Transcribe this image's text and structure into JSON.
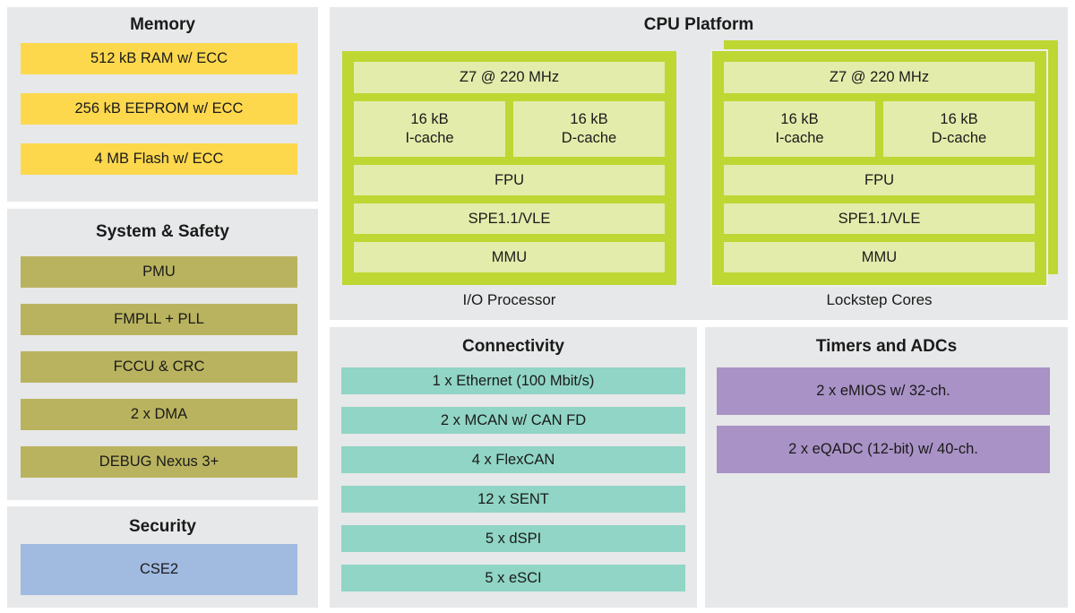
{
  "diagram": {
    "background": "#ffffff",
    "panel_background": "#e7e8e9",
    "text_color": "#1a1a1a",
    "panels": {
      "memory": {
        "title": "Memory",
        "block_color": "#fdd84d",
        "items": [
          "512 kB RAM w/ ECC",
          "256 kB EEPROM w/ ECC",
          "4 MB Flash w/ ECC"
        ]
      },
      "system_safety": {
        "title": "System & Safety",
        "block_color": "#b9b35f",
        "items": [
          "PMU",
          "FMPLL + PLL",
          "FCCU & CRC",
          "2 x DMA",
          "DEBUG Nexus 3+"
        ]
      },
      "security": {
        "title": "Security",
        "block_color": "#a0bae0",
        "items": [
          "CSE2"
        ]
      },
      "cpu_platform": {
        "title": "CPU Platform",
        "card_color": "#bed733",
        "card_outline_color": "#edeeee",
        "inner_block_color": "#e3ecab",
        "cores": [
          {
            "caption": "I/O Processor",
            "cpu": "Z7 @ 220 MHz",
            "icache": "16 kB\nI-cache",
            "dcache": "16 kB\nD-cache",
            "fpu": "FPU",
            "spe": "SPE1.1/VLE",
            "mmu": "MMU"
          },
          {
            "caption": "Lockstep Cores",
            "cpu": "Z7 @ 220 MHz",
            "icache": "16 kB\nI-cache",
            "dcache": "16 kB\nD-cache",
            "fpu": "FPU",
            "spe": "SPE1.1/VLE",
            "mmu": "MMU"
          }
        ]
      },
      "connectivity": {
        "title": "Connectivity",
        "block_color": "#90d5c5",
        "items": [
          "1 x Ethernet (100 Mbit/s)",
          "2 x MCAN w/ CAN FD",
          "4 x FlexCAN",
          "12 x SENT",
          "5 x dSPI",
          "5 x eSCI"
        ]
      },
      "timers_adcs": {
        "title": "Timers and ADCs",
        "block_color": "#a992c6",
        "items": [
          "2 x eMIOS w/ 32-ch.",
          "2 x eQADC (12-bit) w/ 40-ch."
        ]
      }
    }
  }
}
